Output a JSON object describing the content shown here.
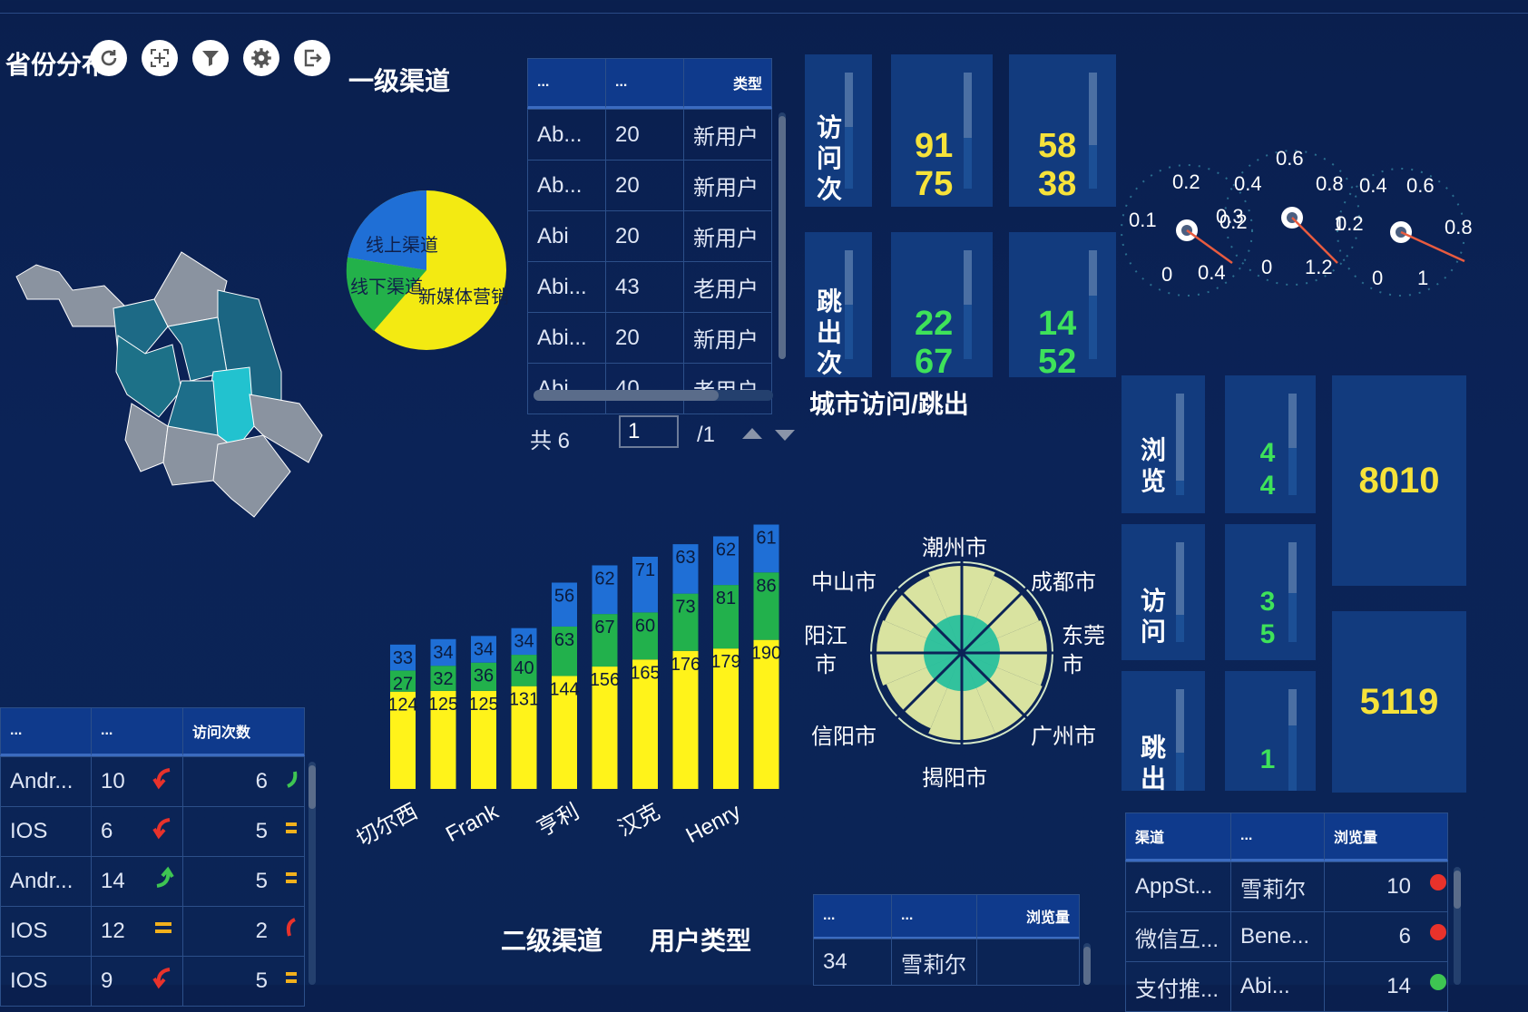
{
  "titles": {
    "province": "省份分布",
    "level1": "一级渠道",
    "city": "城市访问/跳出",
    "level2": "二级渠道",
    "usertype": "用户类型"
  },
  "toolbar": {
    "icons": [
      "refresh-icon",
      "fullscreen-icon",
      "filter-icon",
      "gear-icon",
      "export-icon"
    ]
  },
  "pie": {
    "labels": [
      "线上渠道",
      "线下渠道",
      "新媒体营销"
    ],
    "colors": [
      "#1f6fd6",
      "#23b14a",
      "#f3ea12"
    ]
  },
  "table1": {
    "headers": [
      "...",
      "...",
      "类型"
    ],
    "rows": [
      [
        "Ab...",
        "20",
        "新用户"
      ],
      [
        "Ab...",
        "20",
        "新用户"
      ],
      [
        "Abi",
        "20",
        "新用户"
      ],
      [
        "Abi...",
        "43",
        "老用户"
      ],
      [
        "Abi...",
        "20",
        "新用户"
      ],
      [
        "Abi...",
        "40",
        "老用户"
      ]
    ],
    "pager": {
      "total": "共 6",
      "page": "1",
      "pages": "/1"
    }
  },
  "kpi_top": {
    "visit_label": "访问次",
    "bounce_label": "跳出次",
    "values": [
      "91",
      "58",
      "22",
      "14"
    ],
    "second": [
      "75",
      "38",
      "67",
      "52"
    ]
  },
  "gauges": [
    {
      "ticks": [
        "0",
        "0.1",
        "0.2",
        "0.3",
        "0.4"
      ]
    },
    {
      "ticks": [
        "0",
        "0.2",
        "0.4",
        "0.6",
        "0.8",
        "1",
        "1.2"
      ]
    },
    {
      "ticks": [
        "0",
        "0.2",
        "0.4",
        "0.6",
        "0.8",
        "1"
      ]
    }
  ],
  "kpi_right": {
    "browse_label": "浏览",
    "visit_label": "访问",
    "bounce_label": "跳出",
    "mid": [
      [
        "4",
        "4"
      ],
      [
        "3",
        "5"
      ],
      [
        "1",
        ""
      ]
    ],
    "big": [
      "8010",
      "5119"
    ]
  },
  "chart_data": {
    "type": "bar",
    "categories": [
      "切尔西",
      "",
      "Frank",
      "",
      "亨利",
      "",
      "汉克",
      "",
      "Henry",
      ""
    ],
    "series": [
      {
        "name": "",
        "color": "#fff31a",
        "values": [
          124,
          125,
          125,
          131,
          144,
          156,
          165,
          176,
          179,
          190
        ]
      },
      {
        "name": "",
        "color": "#22b14c",
        "values": [
          27,
          32,
          36,
          40,
          63,
          67,
          60,
          73,
          81,
          86
        ]
      },
      {
        "name": "",
        "color": "#1f6fd6",
        "values": [
          33,
          34,
          34,
          34,
          56,
          62,
          71,
          63,
          62,
          61
        ]
      }
    ]
  },
  "radar": {
    "labels": [
      "潮州市",
      "成都市",
      "东莞市",
      "广州市",
      "揭阳市",
      "信阳市",
      "阳江市",
      "中山市"
    ]
  },
  "table_left": {
    "headers": [
      "...",
      "...",
      "访问次数"
    ],
    "rows": [
      [
        "Andr...",
        "10",
        "6"
      ],
      [
        "IOS",
        "6",
        "5"
      ],
      [
        "Andr...",
        "14",
        "5"
      ],
      [
        "IOS",
        "12",
        "2"
      ],
      [
        "IOS",
        "9",
        "5"
      ]
    ]
  },
  "table_mid": {
    "headers": [
      "...",
      "...",
      "浏览量"
    ],
    "rows": [
      [
        "34",
        "雪莉尔",
        ""
      ]
    ]
  },
  "table_right": {
    "headers": [
      "渠道",
      "...",
      "浏览量"
    ],
    "rows": [
      [
        "AppSt...",
        "雪莉尔",
        "10"
      ],
      [
        "微信互...",
        "Bene...",
        "6"
      ],
      [
        "支付推...",
        "Abi...",
        "14"
      ]
    ]
  }
}
